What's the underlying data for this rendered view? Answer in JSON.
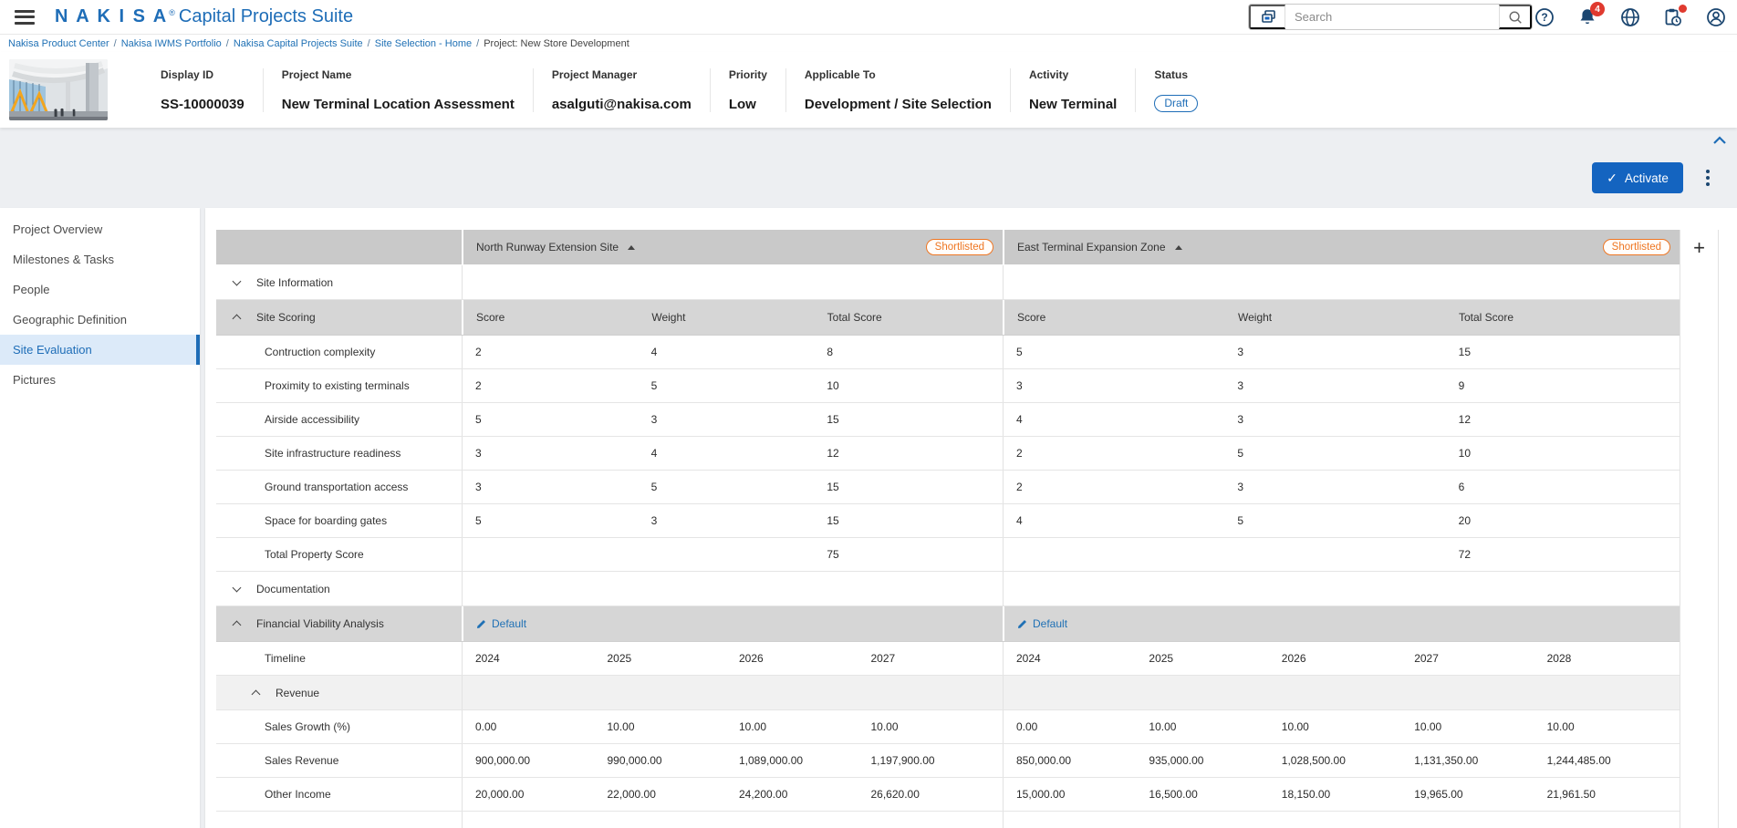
{
  "app": {
    "brand": "N A K I S A",
    "brand_reg": "®",
    "suite": "Capital Projects Suite",
    "search_placeholder": "Search",
    "notification_count": "4"
  },
  "breadcrumb": {
    "links": [
      "Nakisa Product Center",
      "Nakisa IWMS Portfolio",
      "Nakisa Capital Projects Suite",
      "Site Selection - Home"
    ],
    "current": "Project: New Store Development",
    "separator": "/"
  },
  "project": {
    "fields": [
      {
        "label": "Display ID",
        "value": "SS-10000039"
      },
      {
        "label": "Project Name",
        "value": "New Terminal Location Assessment"
      },
      {
        "label": "Project Manager",
        "value": "asalguti@nakisa.com"
      },
      {
        "label": "Priority",
        "value": "Low"
      },
      {
        "label": "Applicable To",
        "value": "Development / Site Selection"
      },
      {
        "label": "Activity",
        "value": "New Terminal"
      }
    ],
    "status_label": "Status",
    "status_value": "Draft"
  },
  "actions": {
    "activate": "Activate",
    "add_site": "+"
  },
  "sidebar": {
    "items": [
      {
        "label": "Project Overview",
        "active": false
      },
      {
        "label": "Milestones & Tasks",
        "active": false
      },
      {
        "label": "People",
        "active": false
      },
      {
        "label": "Geographic Definition",
        "active": false
      },
      {
        "label": "Site Evaluation",
        "active": true
      },
      {
        "label": "Pictures",
        "active": false
      }
    ]
  },
  "table": {
    "sites": [
      {
        "name": "North Runway Extension Site",
        "badge": "Shortlisted"
      },
      {
        "name": "East Terminal Expansion Zone",
        "badge": "Shortlisted"
      }
    ],
    "rows": [
      {
        "type": "group",
        "label": "Site Information",
        "state": "collapsed"
      },
      {
        "type": "scorehead",
        "label": "Site Scoring",
        "state": "expanded",
        "headers": [
          "Score",
          "Weight",
          "Total Score"
        ]
      },
      {
        "type": "score",
        "label": "Contruction complexity",
        "north": [
          "2",
          "4",
          "8"
        ],
        "east": [
          "5",
          "3",
          "15"
        ]
      },
      {
        "type": "score",
        "label": "Proximity to existing terminals",
        "north": [
          "2",
          "5",
          "10"
        ],
        "east": [
          "3",
          "3",
          "9"
        ]
      },
      {
        "type": "score",
        "label": "Airside accessibility",
        "north": [
          "5",
          "3",
          "15"
        ],
        "east": [
          "4",
          "3",
          "12"
        ]
      },
      {
        "type": "score",
        "label": "Site infrastructure readiness",
        "north": [
          "3",
          "4",
          "12"
        ],
        "east": [
          "2",
          "5",
          "10"
        ]
      },
      {
        "type": "score",
        "label": "Ground transportation access",
        "north": [
          "3",
          "5",
          "15"
        ],
        "east": [
          "2",
          "3",
          "6"
        ]
      },
      {
        "type": "score",
        "label": "Space for boarding gates",
        "north": [
          "5",
          "3",
          "15"
        ],
        "east": [
          "4",
          "5",
          "20"
        ]
      },
      {
        "type": "score",
        "label": "Total Property Score",
        "north": [
          "",
          "",
          "75"
        ],
        "east": [
          "",
          "",
          "72"
        ]
      },
      {
        "type": "group",
        "label": "Documentation",
        "state": "collapsed"
      },
      {
        "type": "linkhead",
        "label": "Financial Viability Analysis",
        "state": "expanded",
        "link": "Default"
      },
      {
        "type": "years",
        "label": "Timeline",
        "north": [
          "2024",
          "2025",
          "2026",
          "2027"
        ],
        "east": [
          "2024",
          "2025",
          "2026",
          "2027",
          "2028"
        ]
      },
      {
        "type": "subgroup",
        "label": "Revenue",
        "state": "expanded"
      },
      {
        "type": "years",
        "label": "Sales Growth (%)",
        "north": [
          "0.00",
          "10.00",
          "10.00",
          "10.00"
        ],
        "east": [
          "0.00",
          "10.00",
          "10.00",
          "10.00",
          "10.00"
        ]
      },
      {
        "type": "years",
        "label": "Sales Revenue",
        "north": [
          "900,000.00",
          "990,000.00",
          "1,089,000.00",
          "1,197,900.00"
        ],
        "east": [
          "850,000.00",
          "935,000.00",
          "1,028,500.00",
          "1,131,350.00",
          "1,244,485.00"
        ]
      },
      {
        "type": "years",
        "label": "Other Income",
        "north": [
          "20,000.00",
          "22,000.00",
          "24,200.00",
          "26,620.00"
        ],
        "east": [
          "15,000.00",
          "16,500.00",
          "18,150.00",
          "19,965.00",
          "21,961.50"
        ]
      },
      {
        "type": "partial"
      }
    ]
  },
  "colors": {
    "brand_blue": "#1E6DB7",
    "button_blue": "#1464C0",
    "orange": "#EE7623",
    "badge_red": "#E03A2F",
    "icon_navy": "#1B4670",
    "active_item_bg": "#DCEAF9"
  }
}
